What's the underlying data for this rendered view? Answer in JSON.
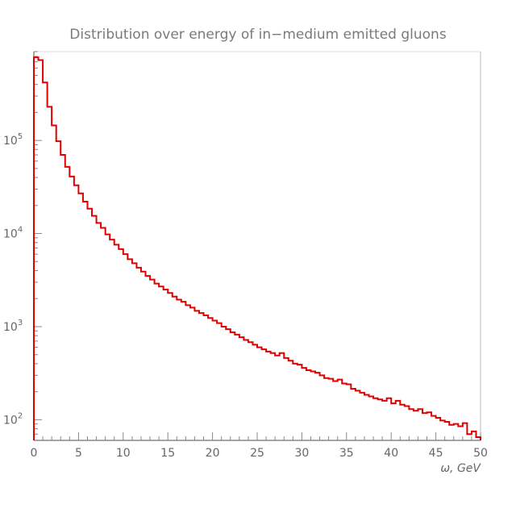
{
  "chart_data": {
    "type": "line",
    "title": "Distribution over energy of in−medium emitted gluons",
    "xlabel": "ω, GeV",
    "ylabel": "",
    "xlim": [
      0,
      50
    ],
    "ylim": [
      60,
      900000
    ],
    "yscale": "log",
    "grid": false,
    "legend": "none",
    "colors": {
      "series": "#e00000",
      "axis": "#888888",
      "text": "#666666"
    },
    "x_ticks": [
      0,
      5,
      10,
      15,
      20,
      25,
      30,
      35,
      40,
      45,
      50
    ],
    "y_ticks": [
      {
        "value": 100,
        "base": "10",
        "exp": "2"
      },
      {
        "value": 1000,
        "base": "10",
        "exp": "3"
      },
      {
        "value": 10000,
        "base": "10",
        "exp": "4"
      },
      {
        "value": 100000,
        "base": "10",
        "exp": "5"
      }
    ],
    "bin_width": 0.5,
    "series": [
      {
        "values": [
          780000,
          730000,
          420000,
          230000,
          145000,
          98000,
          70000,
          52000,
          41000,
          33000,
          27000,
          22000,
          18500,
          15500,
          13000,
          11500,
          9800,
          8600,
          7600,
          6800,
          6000,
          5300,
          4800,
          4300,
          3900,
          3500,
          3200,
          2900,
          2700,
          2500,
          2300,
          2100,
          1950,
          1850,
          1700,
          1600,
          1480,
          1400,
          1320,
          1240,
          1160,
          1090,
          1000,
          940,
          870,
          820,
          770,
          720,
          680,
          640,
          600,
          570,
          540,
          520,
          490,
          520,
          460,
          430,
          400,
          390,
          360,
          340,
          330,
          320,
          300,
          280,
          275,
          260,
          270,
          245,
          240,
          215,
          205,
          195,
          185,
          178,
          170,
          165,
          160,
          170,
          150,
          160,
          145,
          140,
          130,
          125,
          130,
          118,
          120,
          110,
          105,
          98,
          95,
          88,
          90,
          85,
          92,
          70,
          75,
          65
        ]
      }
    ]
  }
}
